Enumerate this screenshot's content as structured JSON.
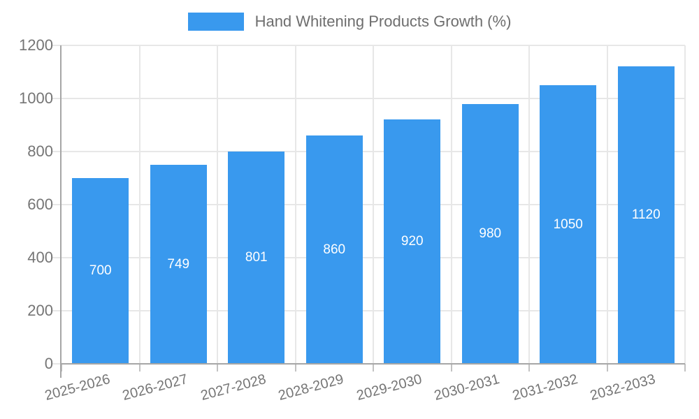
{
  "chart_data": {
    "type": "bar",
    "title": "Hand Whitening Products Growth (%)",
    "categories": [
      "2025-2026",
      "2026-2027",
      "2027-2028",
      "2028-2029",
      "2029-2030",
      "2030-2031",
      "2031-2032",
      "2032-2033"
    ],
    "series": [
      {
        "name": "Hand Whitening Products Growth (%)",
        "color": "#3999ee",
        "values": [
          700,
          749,
          801,
          860,
          920,
          980,
          1050,
          1120
        ]
      }
    ],
    "value_labels_shown": true,
    "value_label_color": "#ffffff",
    "xlabel": "",
    "ylabel": "",
    "ylim": [
      0,
      1200
    ],
    "yticks": [
      0,
      200,
      400,
      600,
      800,
      1000,
      1200
    ],
    "grid": true,
    "legend_position": "top",
    "x_tick_rotation_deg": -15,
    "style": {
      "bar_color": "#3999ee",
      "grid_color": "#e7e7e7",
      "axis_line_color": "#a6a6a6",
      "tick_color": "#c2c2c2",
      "axis_label_color": "#757575",
      "legend_label_color": "#6e6e6e",
      "background_color": "#ffffff"
    }
  },
  "legend": {
    "entries": [
      {
        "label": "Hand Whitening Products Growth (%)",
        "color": "#3999ee"
      }
    ]
  }
}
